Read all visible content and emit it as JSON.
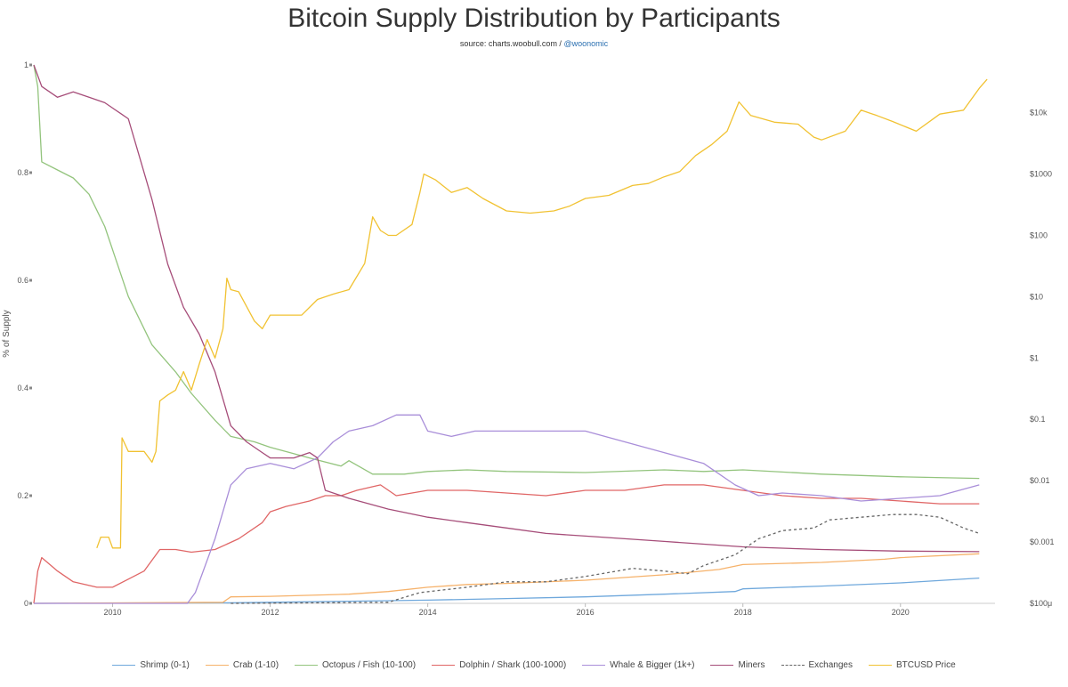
{
  "header": {
    "title": "Bitcoin Supply Distribution by Participants",
    "source_prefix": "source: charts.woobull.com / ",
    "source_handle": "@woonomic"
  },
  "chart_data": {
    "type": "line",
    "title": "Bitcoin Supply Distribution by Participants",
    "ylabel": "% of Supply",
    "xlim": [
      2009.0,
      2021.2
    ],
    "ylim": [
      0,
      1
    ],
    "y2_scale": "log",
    "y2lim": [
      0.0001,
      60000
    ],
    "x_ticks": [
      2010,
      2012,
      2014,
      2016,
      2018,
      2020
    ],
    "x_tick_labels": [
      "2010",
      "2012",
      "2014",
      "2016",
      "2018",
      "2020"
    ],
    "y_ticks": [
      0,
      0.2,
      0.4,
      0.6,
      0.8,
      1
    ],
    "y_tick_labels": [
      "0",
      "0.2",
      "0.4",
      "0.6",
      "0.8",
      "1"
    ],
    "y2_ticks": [
      0.0001,
      0.001,
      0.01,
      0.1,
      1,
      10,
      100,
      1000,
      10000
    ],
    "y2_tick_labels": [
      "$100μ",
      "$0.001",
      "$0.01",
      "$0.1",
      "$1",
      "$10",
      "$100",
      "$1000",
      "$10k"
    ],
    "legend_position": "bottom",
    "series": [
      {
        "name": "Shrimp (0-1)",
        "color": "#6fa8dc",
        "dash": false,
        "axis": "left",
        "points": [
          [
            2009.0,
            0.0
          ],
          [
            2011.5,
            0.001
          ],
          [
            2012.0,
            0.002
          ],
          [
            2013.0,
            0.004
          ],
          [
            2014.0,
            0.006
          ],
          [
            2015.0,
            0.009
          ],
          [
            2016.0,
            0.012
          ],
          [
            2017.0,
            0.017
          ],
          [
            2017.9,
            0.022
          ],
          [
            2018.0,
            0.027
          ],
          [
            2019.0,
            0.032
          ],
          [
            2020.0,
            0.038
          ],
          [
            2021.0,
            0.047
          ]
        ]
      },
      {
        "name": "Crab (1-10)",
        "color": "#f6b26b",
        "dash": false,
        "axis": "left",
        "points": [
          [
            2009.0,
            0.0
          ],
          [
            2011.4,
            0.002
          ],
          [
            2011.5,
            0.012
          ],
          [
            2012.0,
            0.013
          ],
          [
            2013.0,
            0.017
          ],
          [
            2013.5,
            0.022
          ],
          [
            2014.0,
            0.03
          ],
          [
            2014.5,
            0.035
          ],
          [
            2015.0,
            0.037
          ],
          [
            2016.0,
            0.043
          ],
          [
            2017.0,
            0.053
          ],
          [
            2017.7,
            0.063
          ],
          [
            2018.0,
            0.072
          ],
          [
            2019.0,
            0.076
          ],
          [
            2019.8,
            0.082
          ],
          [
            2020.0,
            0.085
          ],
          [
            2021.0,
            0.092
          ]
        ]
      },
      {
        "name": "Octopus / Fish (10-100)",
        "color": "#93c47d",
        "dash": false,
        "axis": "left",
        "points": [
          [
            2009.0,
            1.0
          ],
          [
            2009.05,
            0.96
          ],
          [
            2009.1,
            0.82
          ],
          [
            2009.3,
            0.805
          ],
          [
            2009.5,
            0.79
          ],
          [
            2009.7,
            0.76
          ],
          [
            2009.9,
            0.7
          ],
          [
            2010.2,
            0.57
          ],
          [
            2010.5,
            0.48
          ],
          [
            2010.8,
            0.43
          ],
          [
            2011.0,
            0.39
          ],
          [
            2011.3,
            0.34
          ],
          [
            2011.5,
            0.31
          ],
          [
            2011.8,
            0.3
          ],
          [
            2012.0,
            0.29
          ],
          [
            2012.5,
            0.27
          ],
          [
            2012.9,
            0.255
          ],
          [
            2013.0,
            0.265
          ],
          [
            2013.3,
            0.24
          ],
          [
            2013.7,
            0.24
          ],
          [
            2014.0,
            0.245
          ],
          [
            2014.5,
            0.248
          ],
          [
            2015.0,
            0.245
          ],
          [
            2016.0,
            0.243
          ],
          [
            2017.0,
            0.248
          ],
          [
            2017.5,
            0.245
          ],
          [
            2018.0,
            0.248
          ],
          [
            2019.0,
            0.24
          ],
          [
            2020.0,
            0.235
          ],
          [
            2021.0,
            0.232
          ]
        ]
      },
      {
        "name": "Dolphin / Shark (100-1000)",
        "color": "#e06666",
        "dash": false,
        "axis": "left",
        "points": [
          [
            2009.0,
            0.0
          ],
          [
            2009.05,
            0.06
          ],
          [
            2009.1,
            0.085
          ],
          [
            2009.3,
            0.06
          ],
          [
            2009.5,
            0.04
          ],
          [
            2009.8,
            0.03
          ],
          [
            2010.0,
            0.03
          ],
          [
            2010.2,
            0.045
          ],
          [
            2010.4,
            0.06
          ],
          [
            2010.6,
            0.1
          ],
          [
            2010.8,
            0.1
          ],
          [
            2011.0,
            0.095
          ],
          [
            2011.3,
            0.1
          ],
          [
            2011.6,
            0.12
          ],
          [
            2011.9,
            0.15
          ],
          [
            2012.0,
            0.17
          ],
          [
            2012.2,
            0.18
          ],
          [
            2012.5,
            0.19
          ],
          [
            2012.7,
            0.2
          ],
          [
            2012.9,
            0.2
          ],
          [
            2013.1,
            0.21
          ],
          [
            2013.4,
            0.22
          ],
          [
            2013.6,
            0.2
          ],
          [
            2014.0,
            0.21
          ],
          [
            2014.5,
            0.21
          ],
          [
            2015.0,
            0.205
          ],
          [
            2015.5,
            0.2
          ],
          [
            2016.0,
            0.21
          ],
          [
            2016.5,
            0.21
          ],
          [
            2017.0,
            0.22
          ],
          [
            2017.5,
            0.22
          ],
          [
            2018.0,
            0.21
          ],
          [
            2018.5,
            0.2
          ],
          [
            2019.0,
            0.195
          ],
          [
            2019.5,
            0.195
          ],
          [
            2020.0,
            0.19
          ],
          [
            2020.5,
            0.185
          ],
          [
            2021.0,
            0.185
          ]
        ]
      },
      {
        "name": "Whale & Bigger (1k+)",
        "color": "#a98ed9",
        "dash": false,
        "axis": "left",
        "points": [
          [
            2009.0,
            0.0
          ],
          [
            2010.95,
            0.0
          ],
          [
            2011.05,
            0.02
          ],
          [
            2011.3,
            0.12
          ],
          [
            2011.5,
            0.22
          ],
          [
            2011.7,
            0.25
          ],
          [
            2012.0,
            0.26
          ],
          [
            2012.3,
            0.25
          ],
          [
            2012.6,
            0.27
          ],
          [
            2012.8,
            0.3
          ],
          [
            2013.0,
            0.32
          ],
          [
            2013.3,
            0.33
          ],
          [
            2013.6,
            0.35
          ],
          [
            2013.9,
            0.35
          ],
          [
            2014.0,
            0.32
          ],
          [
            2014.3,
            0.31
          ],
          [
            2014.6,
            0.32
          ],
          [
            2015.0,
            0.32
          ],
          [
            2015.5,
            0.32
          ],
          [
            2016.0,
            0.32
          ],
          [
            2016.5,
            0.3
          ],
          [
            2017.0,
            0.28
          ],
          [
            2017.5,
            0.26
          ],
          [
            2017.9,
            0.22
          ],
          [
            2018.2,
            0.2
          ],
          [
            2018.5,
            0.205
          ],
          [
            2019.0,
            0.2
          ],
          [
            2019.5,
            0.19
          ],
          [
            2020.0,
            0.195
          ],
          [
            2020.5,
            0.2
          ],
          [
            2021.0,
            0.22
          ]
        ]
      },
      {
        "name": "Miners",
        "color": "#a64d79",
        "dash": false,
        "axis": "left",
        "points": [
          [
            2009.0,
            1.0
          ],
          [
            2009.1,
            0.96
          ],
          [
            2009.3,
            0.94
          ],
          [
            2009.5,
            0.95
          ],
          [
            2009.7,
            0.94
          ],
          [
            2009.9,
            0.93
          ],
          [
            2010.0,
            0.92
          ],
          [
            2010.1,
            0.91
          ],
          [
            2010.2,
            0.9
          ],
          [
            2010.3,
            0.85
          ],
          [
            2010.5,
            0.75
          ],
          [
            2010.7,
            0.63
          ],
          [
            2010.9,
            0.55
          ],
          [
            2011.1,
            0.5
          ],
          [
            2011.3,
            0.43
          ],
          [
            2011.5,
            0.33
          ],
          [
            2011.7,
            0.3
          ],
          [
            2011.9,
            0.28
          ],
          [
            2012.0,
            0.27
          ],
          [
            2012.3,
            0.27
          ],
          [
            2012.5,
            0.28
          ],
          [
            2012.6,
            0.27
          ],
          [
            2012.7,
            0.21
          ],
          [
            2013.0,
            0.195
          ],
          [
            2013.5,
            0.175
          ],
          [
            2014.0,
            0.16
          ],
          [
            2014.5,
            0.15
          ],
          [
            2015.0,
            0.14
          ],
          [
            2015.5,
            0.13
          ],
          [
            2016.0,
            0.125
          ],
          [
            2017.0,
            0.115
          ],
          [
            2018.0,
            0.105
          ],
          [
            2019.0,
            0.1
          ],
          [
            2020.0,
            0.097
          ],
          [
            2021.0,
            0.096
          ]
        ]
      },
      {
        "name": "Exchanges",
        "color": "#666666",
        "dash": true,
        "axis": "left",
        "points": [
          [
            2011.5,
            0.0
          ],
          [
            2013.5,
            0.002
          ],
          [
            2013.9,
            0.02
          ],
          [
            2014.2,
            0.025
          ],
          [
            2014.5,
            0.03
          ],
          [
            2015.0,
            0.04
          ],
          [
            2015.5,
            0.04
          ],
          [
            2016.0,
            0.05
          ],
          [
            2016.6,
            0.065
          ],
          [
            2017.0,
            0.06
          ],
          [
            2017.3,
            0.055
          ],
          [
            2017.5,
            0.07
          ],
          [
            2017.9,
            0.09
          ],
          [
            2018.0,
            0.1
          ],
          [
            2018.2,
            0.12
          ],
          [
            2018.5,
            0.135
          ],
          [
            2018.9,
            0.14
          ],
          [
            2019.1,
            0.155
          ],
          [
            2019.5,
            0.16
          ],
          [
            2019.9,
            0.165
          ],
          [
            2020.2,
            0.165
          ],
          [
            2020.5,
            0.16
          ],
          [
            2020.8,
            0.14
          ],
          [
            2021.0,
            0.13
          ]
        ]
      },
      {
        "name": "BTCUSD Price",
        "color": "#f1c232",
        "dash": false,
        "axis": "right",
        "points": [
          [
            2009.8,
            0.0008
          ],
          [
            2009.85,
            0.0012
          ],
          [
            2009.95,
            0.0012
          ],
          [
            2010.0,
            0.0008
          ],
          [
            2010.05,
            0.0008
          ],
          [
            2010.1,
            0.0008
          ],
          [
            2010.12,
            0.05
          ],
          [
            2010.2,
            0.03
          ],
          [
            2010.3,
            0.03
          ],
          [
            2010.4,
            0.03
          ],
          [
            2010.5,
            0.02
          ],
          [
            2010.55,
            0.03
          ],
          [
            2010.6,
            0.2
          ],
          [
            2010.7,
            0.25
          ],
          [
            2010.8,
            0.3
          ],
          [
            2010.9,
            0.6
          ],
          [
            2011.0,
            0.3
          ],
          [
            2011.1,
            0.8
          ],
          [
            2011.2,
            2
          ],
          [
            2011.3,
            1
          ],
          [
            2011.4,
            3
          ],
          [
            2011.45,
            20
          ],
          [
            2011.5,
            13
          ],
          [
            2011.6,
            12
          ],
          [
            2011.8,
            4
          ],
          [
            2011.9,
            3
          ],
          [
            2012.0,
            5
          ],
          [
            2012.2,
            5
          ],
          [
            2012.4,
            5
          ],
          [
            2012.6,
            9
          ],
          [
            2012.8,
            11
          ],
          [
            2013.0,
            13
          ],
          [
            2013.2,
            35
          ],
          [
            2013.3,
            200
          ],
          [
            2013.4,
            120
          ],
          [
            2013.5,
            100
          ],
          [
            2013.6,
            100
          ],
          [
            2013.8,
            150
          ],
          [
            2013.9,
            500
          ],
          [
            2013.95,
            1000
          ],
          [
            2014.1,
            800
          ],
          [
            2014.3,
            500
          ],
          [
            2014.5,
            600
          ],
          [
            2014.7,
            400
          ],
          [
            2015.0,
            250
          ],
          [
            2015.3,
            230
          ],
          [
            2015.6,
            250
          ],
          [
            2015.8,
            300
          ],
          [
            2016.0,
            400
          ],
          [
            2016.3,
            450
          ],
          [
            2016.6,
            650
          ],
          [
            2016.8,
            700
          ],
          [
            2017.0,
            900
          ],
          [
            2017.2,
            1100
          ],
          [
            2017.4,
            2000
          ],
          [
            2017.6,
            3000
          ],
          [
            2017.8,
            5000
          ],
          [
            2017.95,
            15000
          ],
          [
            2018.1,
            9000
          ],
          [
            2018.4,
            7000
          ],
          [
            2018.7,
            6500
          ],
          [
            2018.9,
            4000
          ],
          [
            2019.0,
            3600
          ],
          [
            2019.3,
            5000
          ],
          [
            2019.5,
            11000
          ],
          [
            2019.7,
            9000
          ],
          [
            2019.9,
            7200
          ],
          [
            2020.2,
            5000
          ],
          [
            2020.5,
            9500
          ],
          [
            2020.8,
            11000
          ],
          [
            2021.0,
            25000
          ],
          [
            2021.1,
            35000
          ]
        ]
      }
    ]
  }
}
